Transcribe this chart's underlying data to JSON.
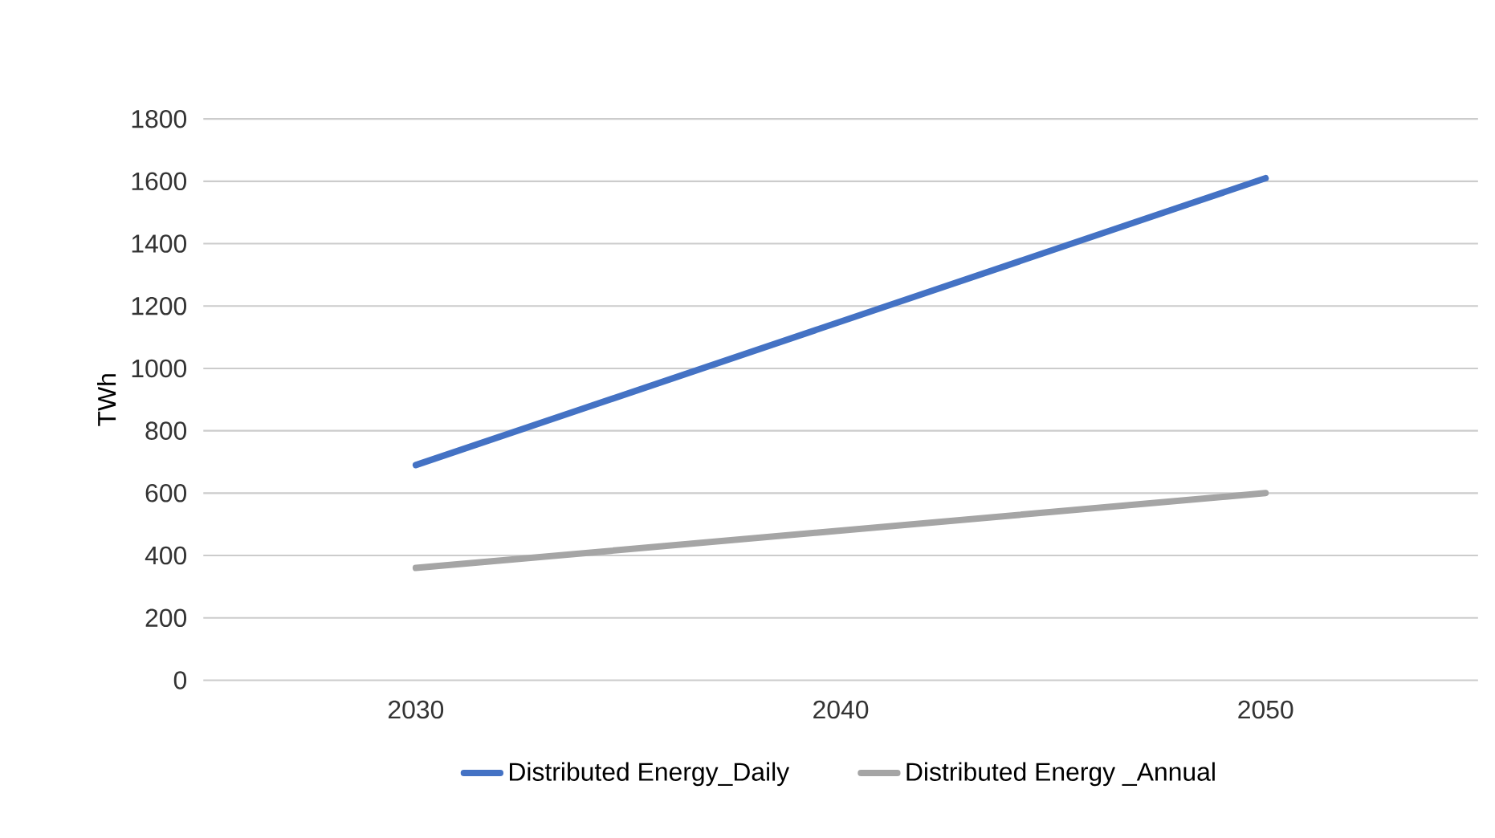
{
  "chart_data": {
    "type": "line",
    "ylabel": "TWh",
    "categories": [
      "2030",
      "2040",
      "2050"
    ],
    "series": [
      {
        "name": "Distributed Energy_Daily",
        "color": "#4472c4",
        "values": [
          690,
          1150,
          1610
        ]
      },
      {
        "name": "Distributed Energy _Annual",
        "color": "#a5a5a5",
        "values": [
          360,
          480,
          600
        ]
      }
    ],
    "ylim": [
      0,
      1800
    ],
    "yticks": [
      0,
      200,
      400,
      600,
      800,
      1000,
      1200,
      1400,
      1600,
      1800
    ],
    "grid": "y",
    "legend": "bottom",
    "marker": "none",
    "line_style": "solid"
  }
}
